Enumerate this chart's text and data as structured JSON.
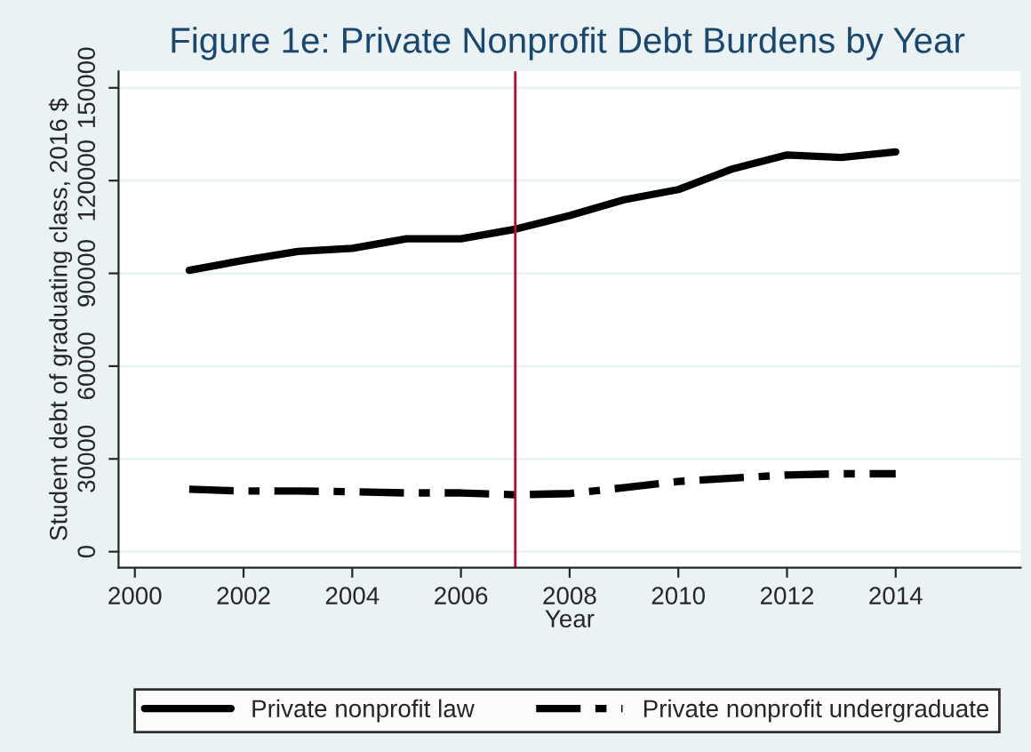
{
  "chart_data": {
    "type": "line",
    "title": "Figure 1e: Private Nonprofit Debt Burdens by Year",
    "xlabel": "Year",
    "ylabel": "Student debt of graduating class, 2016 $",
    "x": [
      2001,
      2002,
      2003,
      2004,
      2005,
      2006,
      2007,
      2008,
      2009,
      2010,
      2011,
      2012,
      2013,
      2014
    ],
    "series": [
      {
        "name": "Private nonprofit law",
        "color": "#000000",
        "line_style": "solid",
        "values": [
          91000,
          94200,
          97100,
          98100,
          101200,
          101200,
          104300,
          108700,
          113800,
          117100,
          123800,
          128300,
          127500,
          129300
        ]
      },
      {
        "name": "Private nonprofit undergraduate",
        "color": "#000000",
        "line_style": "dashdot",
        "values": [
          20200,
          19600,
          19600,
          19400,
          19000,
          19000,
          18400,
          18800,
          20700,
          22700,
          23800,
          24800,
          25200,
          25200
        ]
      }
    ],
    "xlim": [
      1999.7,
      2016.3
    ],
    "xticks": [
      2000,
      2002,
      2004,
      2006,
      2008,
      2010,
      2012,
      2014
    ],
    "ylim": [
      -5200,
      155300
    ],
    "yticks": [
      0,
      30000,
      60000,
      90000,
      120000,
      150000
    ],
    "ref_lines": [
      {
        "axis": "x",
        "value": 2007,
        "color": "#c10534"
      }
    ],
    "grid": "y",
    "legend": "bottom",
    "marker": "none"
  }
}
